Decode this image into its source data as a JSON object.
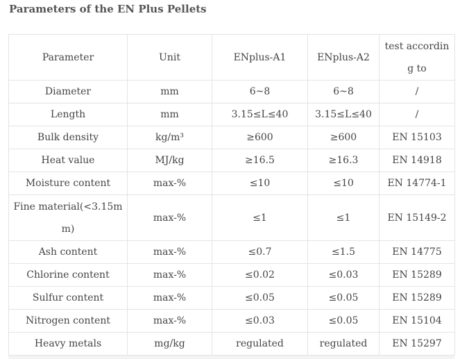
{
  "page_title": "Parameters of the EN Plus Pellets",
  "table": {
    "header": {
      "parameter": "Parameter",
      "unit": "Unit",
      "a1": "ENplus-A1",
      "a2": "ENplus-A2",
      "test": "test according to"
    },
    "rows": [
      {
        "parameter": "Diameter",
        "unit": "mm",
        "a1": "6~8",
        "a2": "6~8",
        "test": "/"
      },
      {
        "parameter": "Length",
        "unit": "mm",
        "a1": "3.15≤L≤40",
        "a2": "3.15≤L≤40",
        "test": "/"
      },
      {
        "parameter": "Bulk density",
        "unit": "kg/m³",
        "a1": "≥600",
        "a2": "≥600",
        "test": "EN 15103"
      },
      {
        "parameter": "Heat value",
        "unit": "MJ/kg",
        "a1": "≥16.5",
        "a2": "≥16.3",
        "test": "EN 14918"
      },
      {
        "parameter": "Moisture content",
        "unit": "max-%",
        "a1": "≤10",
        "a2": "≤10",
        "test": "EN 14774-1"
      },
      {
        "parameter": "Fine material(<3.15mm)",
        "unit": "max-%",
        "a1": "≤1",
        "a2": "≤1",
        "test": "EN 15149-2"
      },
      {
        "parameter": "Ash content",
        "unit": "max-%",
        "a1": "≤0.7",
        "a2": "≤1.5",
        "test": "EN 14775"
      },
      {
        "parameter": "Chlorine content",
        "unit": "max-%",
        "a1": "≤0.02",
        "a2": "≤0.03",
        "test": "EN 15289"
      },
      {
        "parameter": "Sulfur content",
        "unit": "max-%",
        "a1": "≤0.05",
        "a2": "≤0.05",
        "test": "EN 15289"
      },
      {
        "parameter": "Nitrogen content",
        "unit": "max-%",
        "a1": "≤0.03",
        "a2": "≤0.05",
        "test": "EN 15104"
      },
      {
        "parameter": "Heavy metals",
        "unit": "mg/kg",
        "a1": "regulated",
        "a2": "regulated",
        "test": "EN 15297"
      }
    ]
  }
}
